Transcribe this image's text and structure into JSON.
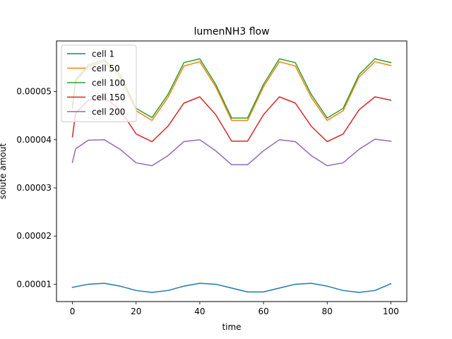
{
  "chart_data": {
    "type": "line",
    "title": "lumenNH3 flow",
    "xlabel": "time",
    "ylabel": "solute amout",
    "xlim": [
      -5,
      105
    ],
    "ylim": [
      6.4e-06,
      6.05e-05
    ],
    "xticks": [
      0,
      20,
      40,
      60,
      80,
      100
    ],
    "xtick_labels": [
      "0",
      "20",
      "40",
      "60",
      "80",
      "100"
    ],
    "yticks": [
      1e-05,
      2e-05,
      3e-05,
      4e-05,
      5e-05
    ],
    "ytick_labels": [
      "0.00001",
      "0.00002",
      "0.00003",
      "0.00004",
      "0.00005"
    ],
    "legend_position": "upper-left",
    "series": [
      {
        "name": "cell 1",
        "color": "#1f77b4",
        "x": [
          0,
          5,
          10,
          15,
          20,
          25,
          30,
          35,
          40,
          45,
          50,
          55,
          60,
          65,
          70,
          75,
          80,
          85,
          90,
          95,
          100
        ],
        "y": [
          9.35e-06,
          1e-05,
          1.02e-05,
          9.6e-06,
          8.7e-06,
          8.3e-06,
          8.7e-06,
          9.6e-06,
          1.02e-05,
          1e-05,
          9.2e-06,
          8.4e-06,
          8.4e-06,
          9.2e-06,
          1e-05,
          1.02e-05,
          9.6e-06,
          8.7e-06,
          8.3e-06,
          8.7e-06,
          1.01e-05
        ]
      },
      {
        "name": "cell 50",
        "color": "#ff7f0e",
        "x": [
          0,
          1,
          5,
          10,
          15,
          20,
          25,
          30,
          35,
          40,
          45,
          50,
          55,
          60,
          65,
          70,
          75,
          80,
          85,
          90,
          95,
          100
        ],
        "y": [
          4.7e-05,
          5.2e-05,
          5.52e-05,
          5.62e-05,
          5.3e-05,
          4.6e-05,
          4.4e-05,
          4.88e-05,
          5.53e-05,
          5.62e-05,
          5.1e-05,
          4.4e-05,
          4.4e-05,
          5.1e-05,
          5.62e-05,
          5.53e-05,
          4.88e-05,
          4.4e-05,
          4.6e-05,
          5.3e-05,
          5.62e-05,
          5.54e-05
        ]
      },
      {
        "name": "cell 100",
        "color": "#2ca02c",
        "x": [
          0,
          1,
          5,
          10,
          15,
          20,
          25,
          30,
          35,
          40,
          45,
          50,
          55,
          60,
          65,
          70,
          75,
          80,
          85,
          90,
          95,
          100
        ],
        "y": [
          4.65e-05,
          5.25e-05,
          5.55e-05,
          5.66e-05,
          5.35e-05,
          4.65e-05,
          4.46e-05,
          4.94e-05,
          5.6e-05,
          5.68e-05,
          5.15e-05,
          4.45e-05,
          4.45e-05,
          5.15e-05,
          5.68e-05,
          5.6e-05,
          4.94e-05,
          4.45e-05,
          4.65e-05,
          5.35e-05,
          5.68e-05,
          5.6e-05
        ]
      },
      {
        "name": "cell 150",
        "color": "#d62728",
        "x": [
          0,
          1,
          5,
          10,
          15,
          20,
          25,
          30,
          35,
          40,
          45,
          50,
          55,
          60,
          65,
          70,
          75,
          80,
          85,
          90,
          95,
          100
        ],
        "y": [
          4.06e-05,
          4.55e-05,
          4.82e-05,
          4.88e-05,
          4.62e-05,
          4.12e-05,
          3.96e-05,
          4.28e-05,
          4.76e-05,
          4.89e-05,
          4.52e-05,
          3.97e-05,
          3.97e-05,
          4.52e-05,
          4.89e-05,
          4.76e-05,
          4.28e-05,
          3.96e-05,
          4.12e-05,
          4.62e-05,
          4.89e-05,
          4.82e-05
        ]
      },
      {
        "name": "cell 200",
        "color": "#9467bd",
        "x": [
          0,
          1,
          5,
          10,
          15,
          20,
          25,
          30,
          35,
          40,
          45,
          50,
          55,
          60,
          65,
          70,
          75,
          80,
          85,
          90,
          95,
          100
        ],
        "y": [
          3.53e-05,
          3.81e-05,
          3.99e-05,
          4e-05,
          3.8e-05,
          3.52e-05,
          3.46e-05,
          3.67e-05,
          3.96e-05,
          4e-05,
          3.77e-05,
          3.48e-05,
          3.48e-05,
          3.77e-05,
          4e-05,
          3.96e-05,
          3.67e-05,
          3.46e-05,
          3.52e-05,
          3.8e-05,
          4.01e-05,
          3.97e-05
        ]
      }
    ]
  }
}
